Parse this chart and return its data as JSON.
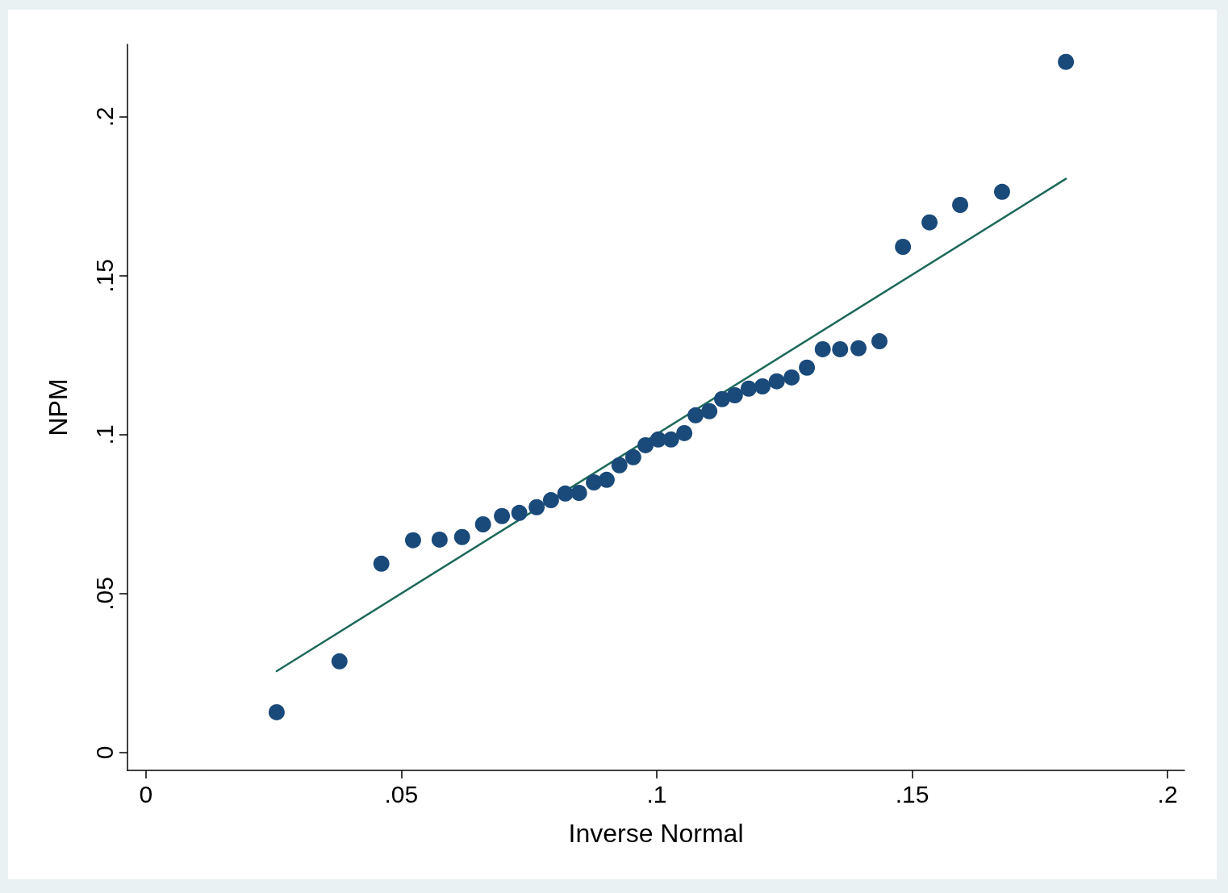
{
  "chart_data": {
    "type": "scatter",
    "xlabel": "Inverse Normal",
    "ylabel": "NPM",
    "xlim": [
      -0.0036,
      0.2033
    ],
    "ylim": [
      -0.0056,
      0.2228
    ],
    "xticks": [
      0,
      {
        "value": 0.05,
        "label": ".05"
      },
      {
        "value": 0.1,
        "label": ".1"
      },
      {
        "value": 0.15,
        "label": ".15"
      },
      {
        "value": 0.2,
        "label": ".2"
      }
    ],
    "yticks": [
      0,
      {
        "value": 0.05,
        "label": ".05"
      },
      {
        "value": 0.1,
        "label": ".1"
      },
      {
        "value": 0.15,
        "label": ".15"
      },
      {
        "value": 0.2,
        "label": ".2"
      }
    ],
    "grid": false,
    "series": [
      {
        "color": "#1a4a7a",
        "marker": "circle",
        "x": [
          0.0256,
          0.0379,
          0.0461,
          0.0523,
          0.0575,
          0.0619,
          0.066,
          0.0697,
          0.0731,
          0.0765,
          0.0793,
          0.0821,
          0.0848,
          0.0877,
          0.0902,
          0.0927,
          0.0954,
          0.0978,
          0.1003,
          0.1028,
          0.1054,
          0.1076,
          0.1103,
          0.1128,
          0.1153,
          0.118,
          0.1207,
          0.1235,
          0.1264,
          0.1294,
          0.1325,
          0.1359,
          0.1395,
          0.1436,
          0.1482,
          0.1534,
          0.1594,
          0.1676,
          0.1801
        ],
        "values": [
          0.0127,
          0.0287,
          0.0594,
          0.0668,
          0.067,
          0.0678,
          0.0718,
          0.0744,
          0.0754,
          0.0772,
          0.0794,
          0.0815,
          0.0817,
          0.085,
          0.0858,
          0.0904,
          0.0929,
          0.0967,
          0.0985,
          0.0985,
          0.1005,
          0.1061,
          0.1074,
          0.1112,
          0.1124,
          0.1145,
          0.1152,
          0.1168,
          0.118,
          0.1211,
          0.1269,
          0.1269,
          0.1272,
          0.1294,
          0.1591,
          0.1668,
          0.1723,
          0.1764,
          0.2173
        ]
      },
      {
        "type": "line",
        "color": "#1e6a5a",
        "marker": "none",
        "line_style": "solid",
        "x": [
          0.0256,
          0.1801
        ],
        "values": [
          0.0256,
          0.1805
        ]
      }
    ]
  }
}
